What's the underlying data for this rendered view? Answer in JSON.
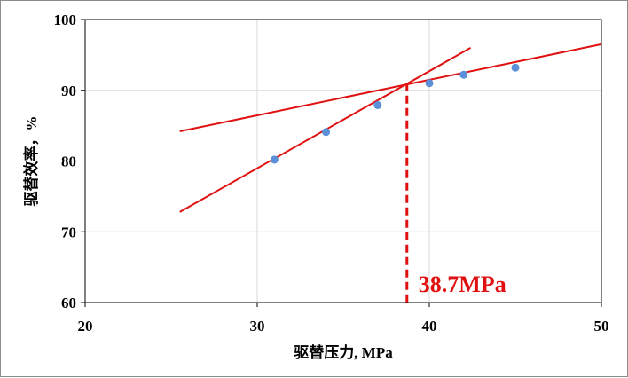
{
  "chart_data": {
    "type": "scatter",
    "title": "",
    "xlabel": "驱替压力, MPa",
    "ylabel": "驱替效率，%",
    "xlim": [
      20,
      50
    ],
    "ylim": [
      60,
      100
    ],
    "xticks": [
      "20",
      "30",
      "40",
      "50"
    ],
    "yticks": [
      "60",
      "70",
      "80",
      "90",
      "100"
    ],
    "grid": true,
    "series": [
      {
        "x": [
          31,
          34,
          37,
          40,
          42,
          45
        ],
        "y": [
          80.2,
          84.1,
          87.9,
          91.0,
          92.2,
          93.2
        ],
        "color": "#5b8fd8"
      }
    ],
    "fit_lines": [
      {
        "x": [
          25.5,
          42.4
        ],
        "y": [
          72.8,
          96.0
        ],
        "color": "#e01010"
      },
      {
        "x": [
          25.5,
          50.0
        ],
        "y": [
          84.2,
          96.5
        ],
        "color": "#e01010"
      }
    ],
    "annotation": {
      "text": "38.7MPa",
      "x": 38.7,
      "y": 91.0,
      "color": "#e01010"
    }
  }
}
